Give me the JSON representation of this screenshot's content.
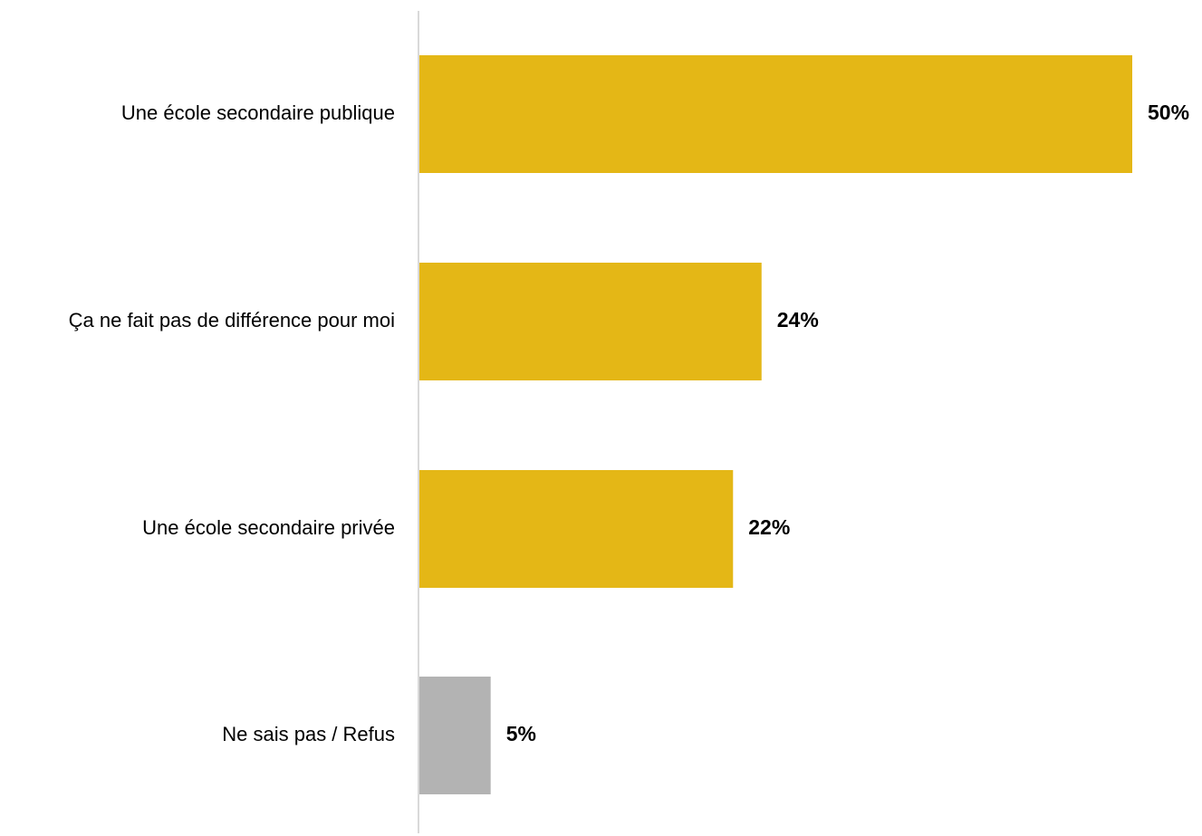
{
  "chart_data": {
    "type": "bar",
    "orientation": "horizontal",
    "title": "",
    "xlabel": "",
    "ylabel": "",
    "xlim": [
      0,
      50
    ],
    "grid": false,
    "legend": "none",
    "categories": [
      "Une école secondaire publique",
      "Ça ne fait pas de différence pour moi",
      "Une école secondaire privée",
      "Ne sais pas / Refus"
    ],
    "values": [
      50,
      24,
      22,
      5
    ],
    "value_labels": [
      "50%",
      "24%",
      "22%",
      "5%"
    ],
    "colors": [
      "#E4B716",
      "#E4B716",
      "#E4B716",
      "#B3B3B3"
    ],
    "axis_color": "#D9D9D9"
  }
}
